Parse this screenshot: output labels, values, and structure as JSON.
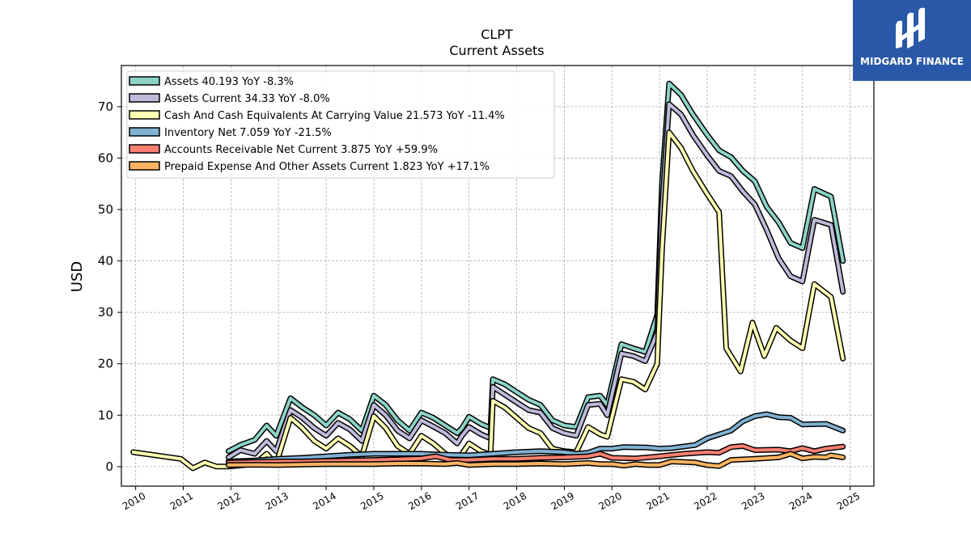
{
  "logo": {
    "text": "MIDGARD FINANCE",
    "mark": "mf-logo-icon",
    "background": "#2a58a8"
  },
  "chart_data": {
    "type": "line",
    "title": "CLPT",
    "subtitle": "Current  Assets",
    "ylabel": "USD",
    "xlabel": "",
    "xlim": [
      2009.7,
      2025.5
    ],
    "ylim": [
      -3.8,
      78
    ],
    "yticks": [
      0,
      10,
      20,
      30,
      40,
      50,
      60,
      70
    ],
    "xticks": [
      "2010",
      "2011",
      "2012",
      "2013",
      "2014",
      "2015",
      "2016",
      "2017",
      "2018",
      "2019",
      "2020",
      "2021",
      "2022",
      "2023",
      "2024",
      "2025"
    ],
    "grid": true,
    "legend_position": "top-left",
    "series": [
      {
        "name": "Assets  40.193 YoY -8.3%",
        "color": "#8dd3c7",
        "points": [
          [
            2011.95,
            3
          ],
          [
            2012.2,
            4.2
          ],
          [
            2012.5,
            5.2
          ],
          [
            2012.75,
            8
          ],
          [
            2012.95,
            6
          ],
          [
            2013.25,
            13.3
          ],
          [
            2013.5,
            11.5
          ],
          [
            2013.75,
            10
          ],
          [
            2014.0,
            8
          ],
          [
            2014.25,
            10.5
          ],
          [
            2014.5,
            9.2
          ],
          [
            2014.75,
            7
          ],
          [
            2015.0,
            13.8
          ],
          [
            2015.25,
            12
          ],
          [
            2015.5,
            9
          ],
          [
            2015.75,
            7
          ],
          [
            2016.0,
            10.5
          ],
          [
            2016.25,
            9.5
          ],
          [
            2016.5,
            8
          ],
          [
            2016.75,
            6.5
          ],
          [
            2016.85,
            7.5
          ],
          [
            2017.0,
            9.7
          ],
          [
            2017.25,
            8.3
          ],
          [
            2017.45,
            7.5
          ],
          [
            2017.5,
            17
          ],
          [
            2017.75,
            16
          ],
          [
            2018.0,
            14.5
          ],
          [
            2018.25,
            13
          ],
          [
            2018.5,
            12
          ],
          [
            2018.75,
            9
          ],
          [
            2019.0,
            8
          ],
          [
            2019.25,
            7.7
          ],
          [
            2019.5,
            13.5
          ],
          [
            2019.75,
            13.8
          ],
          [
            2019.9,
            12
          ],
          [
            2020.2,
            23.8
          ],
          [
            2020.45,
            23
          ],
          [
            2020.7,
            22.3
          ],
          [
            2020.95,
            29.5
          ],
          [
            2021.05,
            55
          ],
          [
            2021.2,
            74.5
          ],
          [
            2021.45,
            72.3
          ],
          [
            2021.7,
            68.5
          ],
          [
            2022.0,
            64.5
          ],
          [
            2022.25,
            61.5
          ],
          [
            2022.5,
            60.2
          ],
          [
            2022.75,
            57.5
          ],
          [
            2023.0,
            55.5
          ],
          [
            2023.25,
            50.5
          ],
          [
            2023.5,
            47.5
          ],
          [
            2023.75,
            43.5
          ],
          [
            2024.0,
            42.5
          ],
          [
            2024.25,
            54
          ],
          [
            2024.6,
            52.5
          ],
          [
            2024.85,
            40
          ]
        ]
      },
      {
        "name": "Assets Current  34.33 YoY -8.0%",
        "color": "#bebada",
        "points": [
          [
            2011.95,
            1.8
          ],
          [
            2012.2,
            3.2
          ],
          [
            2012.5,
            2.5
          ],
          [
            2012.75,
            5
          ],
          [
            2012.95,
            3
          ],
          [
            2013.25,
            11
          ],
          [
            2013.5,
            9.5
          ],
          [
            2013.75,
            7.5
          ],
          [
            2014.0,
            6
          ],
          [
            2014.25,
            8.5
          ],
          [
            2014.5,
            7.2
          ],
          [
            2014.75,
            5
          ],
          [
            2015.0,
            12
          ],
          [
            2015.25,
            10
          ],
          [
            2015.5,
            7
          ],
          [
            2015.75,
            5.5
          ],
          [
            2016.0,
            9
          ],
          [
            2016.25,
            7.8
          ],
          [
            2016.5,
            6.5
          ],
          [
            2016.75,
            4.5
          ],
          [
            2016.85,
            6
          ],
          [
            2017.0,
            7.7
          ],
          [
            2017.25,
            6.3
          ],
          [
            2017.45,
            5.5
          ],
          [
            2017.5,
            15.5
          ],
          [
            2017.75,
            14
          ],
          [
            2018.0,
            12.5
          ],
          [
            2018.25,
            11
          ],
          [
            2018.5,
            10.5
          ],
          [
            2018.75,
            7.5
          ],
          [
            2019.0,
            6.5
          ],
          [
            2019.25,
            6
          ],
          [
            2019.5,
            12
          ],
          [
            2019.75,
            12.2
          ],
          [
            2019.9,
            10
          ],
          [
            2020.2,
            22
          ],
          [
            2020.45,
            21.5
          ],
          [
            2020.7,
            20.5
          ],
          [
            2020.95,
            26
          ],
          [
            2021.05,
            50
          ],
          [
            2021.2,
            70.5
          ],
          [
            2021.45,
            68.5
          ],
          [
            2021.7,
            64.5
          ],
          [
            2022.0,
            60.5
          ],
          [
            2022.25,
            57.5
          ],
          [
            2022.5,
            56.5
          ],
          [
            2022.75,
            53.5
          ],
          [
            2023.0,
            51
          ],
          [
            2023.25,
            46
          ],
          [
            2023.5,
            40.5
          ],
          [
            2023.75,
            37
          ],
          [
            2024.0,
            36
          ],
          [
            2024.25,
            48
          ],
          [
            2024.6,
            47
          ],
          [
            2024.85,
            34
          ]
        ]
      },
      {
        "name": "Cash And Cash Equivalents At Carrying Value  21.573 YoY -11.4%",
        "color": "#ffffb3",
        "points": [
          [
            2009.95,
            2.8
          ],
          [
            2010.95,
            1.5
          ],
          [
            2011.2,
            -0.3
          ],
          [
            2011.45,
            0.8
          ],
          [
            2011.7,
            0
          ],
          [
            2011.95,
            0
          ],
          [
            2012.5,
            0.5
          ],
          [
            2012.75,
            2.5
          ],
          [
            2012.95,
            0.5
          ],
          [
            2013.25,
            9.5
          ],
          [
            2013.5,
            7.5
          ],
          [
            2013.75,
            5
          ],
          [
            2014.0,
            3.5
          ],
          [
            2014.25,
            5.5
          ],
          [
            2014.5,
            4
          ],
          [
            2014.75,
            2
          ],
          [
            2015.0,
            9.8
          ],
          [
            2015.25,
            7.5
          ],
          [
            2015.5,
            4
          ],
          [
            2015.75,
            2.5
          ],
          [
            2016.0,
            6
          ],
          [
            2016.25,
            4.5
          ],
          [
            2016.5,
            2.5
          ],
          [
            2016.75,
            1.5
          ],
          [
            2016.85,
            2.5
          ],
          [
            2017.0,
            4.5
          ],
          [
            2017.25,
            3
          ],
          [
            2017.45,
            2.3
          ],
          [
            2017.5,
            12.8
          ],
          [
            2017.75,
            11.5
          ],
          [
            2018.0,
            9.5
          ],
          [
            2018.25,
            7.5
          ],
          [
            2018.5,
            6.5
          ],
          [
            2018.75,
            3.5
          ],
          [
            2019.0,
            3
          ],
          [
            2019.25,
            2.8
          ],
          [
            2019.5,
            7.7
          ],
          [
            2019.75,
            6.3
          ],
          [
            2019.9,
            5.8
          ],
          [
            2020.2,
            17
          ],
          [
            2020.45,
            16.5
          ],
          [
            2020.7,
            15
          ],
          [
            2020.95,
            20
          ],
          [
            2021.05,
            42
          ],
          [
            2021.2,
            65
          ],
          [
            2021.45,
            62
          ],
          [
            2021.7,
            57.5
          ],
          [
            2022.0,
            53
          ],
          [
            2022.25,
            49.5
          ],
          [
            2022.4,
            23
          ],
          [
            2022.7,
            18.5
          ],
          [
            2022.95,
            28
          ],
          [
            2023.2,
            21.5
          ],
          [
            2023.45,
            27
          ],
          [
            2023.75,
            24.5
          ],
          [
            2024.0,
            23
          ],
          [
            2024.25,
            35.5
          ],
          [
            2024.6,
            33
          ],
          [
            2024.85,
            21
          ]
        ]
      },
      {
        "name": "Inventory Net  7.059 YoY -21.5%",
        "color": "#80b1d3",
        "points": [
          [
            2011.95,
            1
          ],
          [
            2012.5,
            1.2
          ],
          [
            2013.0,
            1.5
          ],
          [
            2013.5,
            1.7
          ],
          [
            2014.0,
            2
          ],
          [
            2014.5,
            2.3
          ],
          [
            2015.0,
            2.5
          ],
          [
            2015.5,
            2.5
          ],
          [
            2016.0,
            2.5
          ],
          [
            2016.5,
            2.3
          ],
          [
            2017.0,
            2.2
          ],
          [
            2017.5,
            2.5
          ],
          [
            2018.0,
            2.8
          ],
          [
            2018.5,
            3
          ],
          [
            2019.0,
            2.8
          ],
          [
            2019.25,
            2.5
          ],
          [
            2019.5,
            2.7
          ],
          [
            2019.75,
            3.5
          ],
          [
            2020.0,
            3.5
          ],
          [
            2020.25,
            3.8
          ],
          [
            2020.75,
            3.7
          ],
          [
            2021.0,
            3.5
          ],
          [
            2021.25,
            3.6
          ],
          [
            2021.75,
            4.2
          ],
          [
            2022.0,
            5.5
          ],
          [
            2022.5,
            7
          ],
          [
            2022.75,
            8.8
          ],
          [
            2023.0,
            9.8
          ],
          [
            2023.25,
            10.2
          ],
          [
            2023.5,
            9.6
          ],
          [
            2023.75,
            9.5
          ],
          [
            2024.0,
            8.2
          ],
          [
            2024.5,
            8.3
          ],
          [
            2024.85,
            7
          ]
        ]
      },
      {
        "name": "Accounts Receivable Net Current  3.875 YoY +59.9%",
        "color": "#fb8072",
        "points": [
          [
            2011.95,
            0.8
          ],
          [
            2012.5,
            0.9
          ],
          [
            2013.0,
            1
          ],
          [
            2013.5,
            1
          ],
          [
            2014.0,
            1.1
          ],
          [
            2014.5,
            1.2
          ],
          [
            2015.0,
            1.3
          ],
          [
            2015.5,
            1.4
          ],
          [
            2016.0,
            1.6
          ],
          [
            2016.3,
            2
          ],
          [
            2016.6,
            1.3
          ],
          [
            2017.0,
            1.3
          ],
          [
            2017.5,
            1.5
          ],
          [
            2018.0,
            1.5
          ],
          [
            2018.5,
            1.7
          ],
          [
            2019.0,
            1.8
          ],
          [
            2019.5,
            2
          ],
          [
            2019.75,
            2.5
          ],
          [
            2020.0,
            1.7
          ],
          [
            2020.5,
            1.6
          ],
          [
            2021.0,
            2
          ],
          [
            2021.5,
            2.5
          ],
          [
            2022.0,
            2.8
          ],
          [
            2022.25,
            2.7
          ],
          [
            2022.5,
            3.8
          ],
          [
            2022.75,
            4
          ],
          [
            2023.0,
            3.2
          ],
          [
            2023.5,
            3.3
          ],
          [
            2023.75,
            3
          ],
          [
            2024.0,
            3.6
          ],
          [
            2024.25,
            3
          ],
          [
            2024.5,
            3.5
          ],
          [
            2024.85,
            3.9
          ]
        ]
      },
      {
        "name": "Prepaid Expense And Other Assets Current  1.823 YoY +17.1%",
        "color": "#fdb462",
        "points": [
          [
            2011.95,
            0.3
          ],
          [
            2012.5,
            0.35
          ],
          [
            2013.0,
            0.3
          ],
          [
            2013.5,
            0.4
          ],
          [
            2014.0,
            0.5
          ],
          [
            2014.5,
            0.5
          ],
          [
            2015.0,
            0.5
          ],
          [
            2015.5,
            0.6
          ],
          [
            2016.0,
            0.6
          ],
          [
            2016.5,
            0.5
          ],
          [
            2016.75,
            0.7
          ],
          [
            2017.0,
            0.3
          ],
          [
            2017.5,
            0.5
          ],
          [
            2018.0,
            0.5
          ],
          [
            2018.5,
            0.6
          ],
          [
            2019.0,
            0.5
          ],
          [
            2019.5,
            0.7
          ],
          [
            2019.75,
            0.5
          ],
          [
            2020.0,
            0.5
          ],
          [
            2020.25,
            0.2
          ],
          [
            2020.5,
            0.5
          ],
          [
            2020.75,
            0.3
          ],
          [
            2021.0,
            0.3
          ],
          [
            2021.25,
            1
          ],
          [
            2021.75,
            0.8
          ],
          [
            2022.0,
            0.3
          ],
          [
            2022.25,
            0.1
          ],
          [
            2022.5,
            1.3
          ],
          [
            2023.0,
            1.5
          ],
          [
            2023.5,
            1.8
          ],
          [
            2023.75,
            2.5
          ],
          [
            2024.0,
            1.6
          ],
          [
            2024.25,
            1.9
          ],
          [
            2024.5,
            1.8
          ],
          [
            2024.6,
            2.2
          ],
          [
            2024.85,
            1.8
          ]
        ]
      }
    ]
  }
}
